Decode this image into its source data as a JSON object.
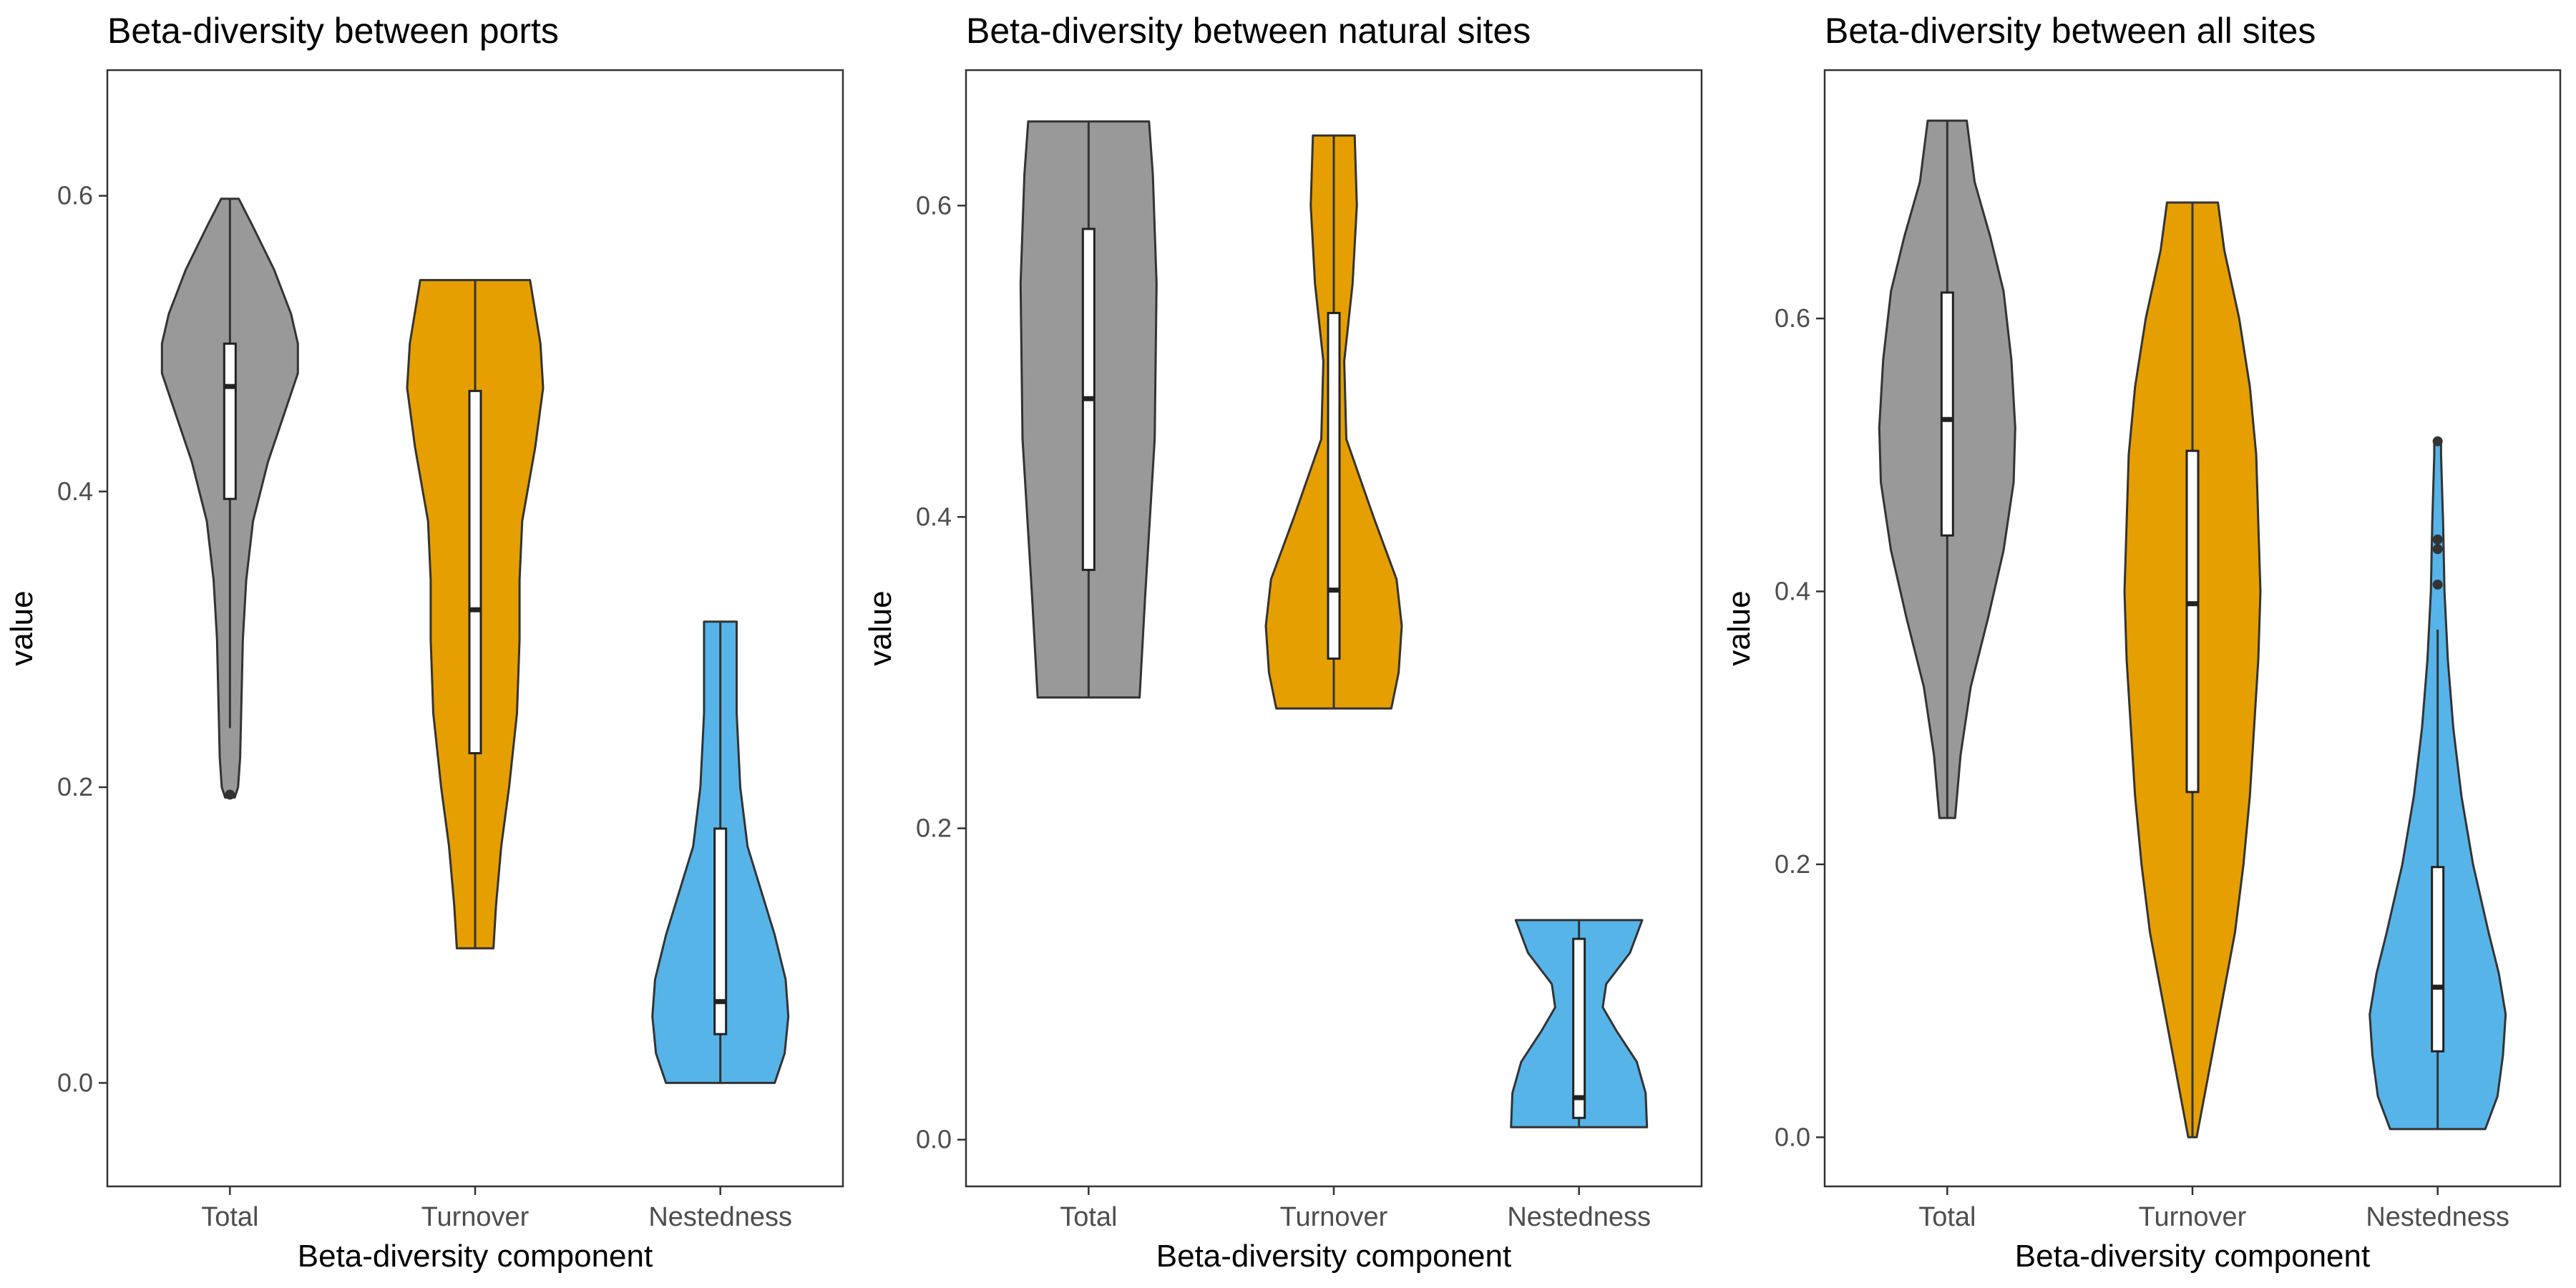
{
  "chart_data": [
    {
      "type": "violin",
      "title": "Beta-diversity between ports",
      "xlabel": "Beta-diversity component",
      "ylabel": "value",
      "categories": [
        "Total",
        "Turnover",
        "Nestedness"
      ],
      "ylim": [
        -0.07,
        0.685
      ],
      "yticks": [
        0.0,
        0.2,
        0.4,
        0.6
      ],
      "ytick_labels": [
        "0.0",
        "0.2",
        "0.4",
        "0.6"
      ],
      "grid": false,
      "series": [
        {
          "category": "Total",
          "color": "#999999",
          "min": 0.193,
          "max": 0.598,
          "box": {
            "q1": 0.395,
            "median": 0.471,
            "q3": 0.5,
            "whisker_low": 0.24,
            "whisker_high": 0.598
          },
          "outliers": [
            0.195
          ],
          "density": [
            [
              0.193,
              0.07
            ],
            [
              0.2,
              0.12
            ],
            [
              0.22,
              0.15
            ],
            [
              0.26,
              0.17
            ],
            [
              0.3,
              0.19
            ],
            [
              0.34,
              0.24
            ],
            [
              0.38,
              0.34
            ],
            [
              0.42,
              0.56
            ],
            [
              0.45,
              0.78
            ],
            [
              0.48,
              1.0
            ],
            [
              0.5,
              1.0
            ],
            [
              0.52,
              0.9
            ],
            [
              0.55,
              0.65
            ],
            [
              0.58,
              0.33
            ],
            [
              0.598,
              0.13
            ]
          ]
        },
        {
          "category": "Turnover",
          "color": "#E69F00",
          "min": 0.091,
          "max": 0.543,
          "box": {
            "q1": 0.223,
            "median": 0.32,
            "q3": 0.468,
            "whisker_low": 0.091,
            "whisker_high": 0.543
          },
          "outliers": [],
          "density": [
            [
              0.091,
              0.07
            ],
            [
              0.12,
              0.08
            ],
            [
              0.16,
              0.1
            ],
            [
              0.2,
              0.13
            ],
            [
              0.25,
              0.16
            ],
            [
              0.3,
              0.17
            ],
            [
              0.34,
              0.17
            ],
            [
              0.38,
              0.18
            ],
            [
              0.43,
              0.23
            ],
            [
              0.47,
              0.26
            ],
            [
              0.5,
              0.25
            ],
            [
              0.543,
              0.21
            ]
          ]
        },
        {
          "category": "Nestedness",
          "color": "#56B4E9",
          "min": 0.0,
          "max": 0.312,
          "box": {
            "q1": 0.033,
            "median": 0.055,
            "q3": 0.172,
            "whisker_low": 0.0,
            "whisker_high": 0.312
          },
          "outliers": [],
          "density": [
            [
              0.0,
              0.6
            ],
            [
              0.02,
              0.71
            ],
            [
              0.045,
              0.75
            ],
            [
              0.07,
              0.72
            ],
            [
              0.1,
              0.6
            ],
            [
              0.13,
              0.45
            ],
            [
              0.16,
              0.3
            ],
            [
              0.2,
              0.22
            ],
            [
              0.25,
              0.18
            ],
            [
              0.312,
              0.18
            ]
          ]
        }
      ]
    },
    {
      "type": "violin",
      "title": "Beta-diversity between natural sites",
      "xlabel": "Beta-diversity component",
      "ylabel": "value",
      "categories": [
        "Total",
        "Turnover",
        "Nestedness"
      ],
      "ylim": [
        -0.03,
        0.687
      ],
      "yticks": [
        0.0,
        0.2,
        0.4,
        0.6
      ],
      "ytick_labels": [
        "0.0",
        "0.2",
        "0.4",
        "0.6"
      ],
      "grid": false,
      "series": [
        {
          "category": "Total",
          "color": "#999999",
          "min": 0.284,
          "max": 0.654,
          "box": {
            "q1": 0.366,
            "median": 0.476,
            "q3": 0.585,
            "whisker_low": 0.284,
            "whisker_high": 0.654
          },
          "outliers": [],
          "density": [
            [
              0.284,
              0.27
            ],
            [
              0.35,
              0.3
            ],
            [
              0.45,
              0.35
            ],
            [
              0.55,
              0.36
            ],
            [
              0.62,
              0.34
            ],
            [
              0.654,
              0.32
            ]
          ]
        },
        {
          "category": "Turnover",
          "color": "#E69F00",
          "min": 0.277,
          "max": 0.645,
          "box": {
            "q1": 0.309,
            "median": 0.353,
            "q3": 0.531,
            "whisker_low": 0.277,
            "whisker_high": 0.645
          },
          "outliers": [],
          "density": [
            [
              0.277,
              0.55
            ],
            [
              0.3,
              0.62
            ],
            [
              0.33,
              0.65
            ],
            [
              0.36,
              0.6
            ],
            [
              0.4,
              0.38
            ],
            [
              0.45,
              0.12
            ],
            [
              0.5,
              0.1
            ],
            [
              0.55,
              0.18
            ],
            [
              0.6,
              0.22
            ],
            [
              0.645,
              0.2
            ]
          ]
        },
        {
          "category": "Nestedness",
          "color": "#56B4E9",
          "min": 0.008,
          "max": 0.141,
          "box": {
            "q1": 0.014,
            "median": 0.027,
            "q3": 0.129,
            "whisker_low": 0.008,
            "whisker_high": 0.141
          },
          "outliers": [],
          "density": [
            [
              0.008,
              1.0
            ],
            [
              0.03,
              0.98
            ],
            [
              0.05,
              0.85
            ],
            [
              0.07,
              0.55
            ],
            [
              0.085,
              0.35
            ],
            [
              0.1,
              0.4
            ],
            [
              0.12,
              0.75
            ],
            [
              0.141,
              0.93
            ]
          ]
        }
      ]
    },
    {
      "type": "violin",
      "title": "Beta-diversity between all sites",
      "xlabel": "Beta-diversity component",
      "ylabel": "value",
      "categories": [
        "Total",
        "Turnover",
        "Nestedness"
      ],
      "ylim": [
        -0.036,
        0.782
      ],
      "yticks": [
        0.0,
        0.2,
        0.4,
        0.6
      ],
      "ytick_labels": [
        "0.0",
        "0.2",
        "0.4",
        "0.6"
      ],
      "grid": false,
      "series": [
        {
          "category": "Total",
          "color": "#999999",
          "min": 0.234,
          "max": 0.745,
          "box": {
            "q1": 0.441,
            "median": 0.526,
            "q3": 0.619,
            "whisker_low": 0.234,
            "whisker_high": 0.745
          },
          "outliers": [],
          "density": [
            [
              0.234,
              0.1
            ],
            [
              0.28,
              0.17
            ],
            [
              0.33,
              0.3
            ],
            [
              0.38,
              0.52
            ],
            [
              0.43,
              0.72
            ],
            [
              0.48,
              0.85
            ],
            [
              0.52,
              0.87
            ],
            [
              0.57,
              0.82
            ],
            [
              0.62,
              0.72
            ],
            [
              0.66,
              0.55
            ],
            [
              0.7,
              0.35
            ],
            [
              0.745,
              0.25
            ]
          ]
        },
        {
          "category": "Turnover",
          "color": "#E69F00",
          "min": 0.0,
          "max": 0.685,
          "box": {
            "q1": 0.253,
            "median": 0.391,
            "q3": 0.503,
            "whisker_low": 0.0,
            "whisker_high": 0.685
          },
          "outliers": [],
          "density": [
            [
              0.0,
              0.02
            ],
            [
              0.05,
              0.08
            ],
            [
              0.1,
              0.14
            ],
            [
              0.15,
              0.2
            ],
            [
              0.2,
              0.24
            ],
            [
              0.25,
              0.27
            ],
            [
              0.3,
              0.29
            ],
            [
              0.35,
              0.31
            ],
            [
              0.4,
              0.32
            ],
            [
              0.45,
              0.31
            ],
            [
              0.5,
              0.3
            ],
            [
              0.55,
              0.27
            ],
            [
              0.6,
              0.22
            ],
            [
              0.65,
              0.15
            ],
            [
              0.685,
              0.12
            ]
          ]
        },
        {
          "category": "Nestedness",
          "color": "#56B4E9",
          "min": 0.006,
          "max": 0.51,
          "box": {
            "q1": 0.063,
            "median": 0.11,
            "q3": 0.198,
            "whisker_low": 0.006,
            "whisker_high": 0.372
          },
          "outliers": [
            0.405,
            0.431,
            0.438,
            0.51
          ],
          "density": [
            [
              0.006,
              0.7
            ],
            [
              0.03,
              0.88
            ],
            [
              0.06,
              0.96
            ],
            [
              0.09,
              1.0
            ],
            [
              0.12,
              0.9
            ],
            [
              0.15,
              0.75
            ],
            [
              0.2,
              0.52
            ],
            [
              0.25,
              0.35
            ],
            [
              0.3,
              0.23
            ],
            [
              0.35,
              0.15
            ],
            [
              0.4,
              0.1
            ],
            [
              0.45,
              0.08
            ],
            [
              0.5,
              0.05
            ],
            [
              0.51,
              0.05
            ]
          ]
        }
      ]
    }
  ]
}
